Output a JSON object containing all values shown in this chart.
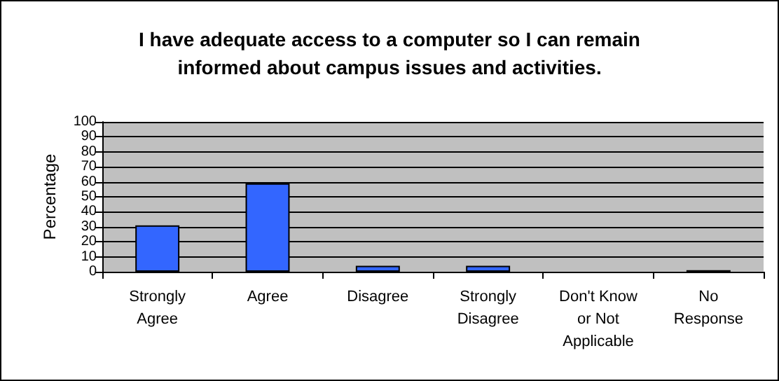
{
  "chart_data": {
    "type": "bar",
    "title": "I have adequate access to a computer so I can remain\ninformed about campus issues and activities.",
    "ylabel": "Percentage",
    "categories": [
      "Strongly\nAgree",
      "Agree",
      "Disagree",
      "Strongly\nDisagree",
      "Don't Know\nor Not\nApplicable",
      "No\nResponse"
    ],
    "values": [
      31,
      59,
      4,
      4,
      0,
      1
    ],
    "color": "#3366ff",
    "ylim": [
      0,
      100
    ],
    "yticks": [
      0,
      10,
      20,
      30,
      40,
      50,
      60,
      70,
      80,
      90,
      100
    ],
    "grid": "y"
  }
}
